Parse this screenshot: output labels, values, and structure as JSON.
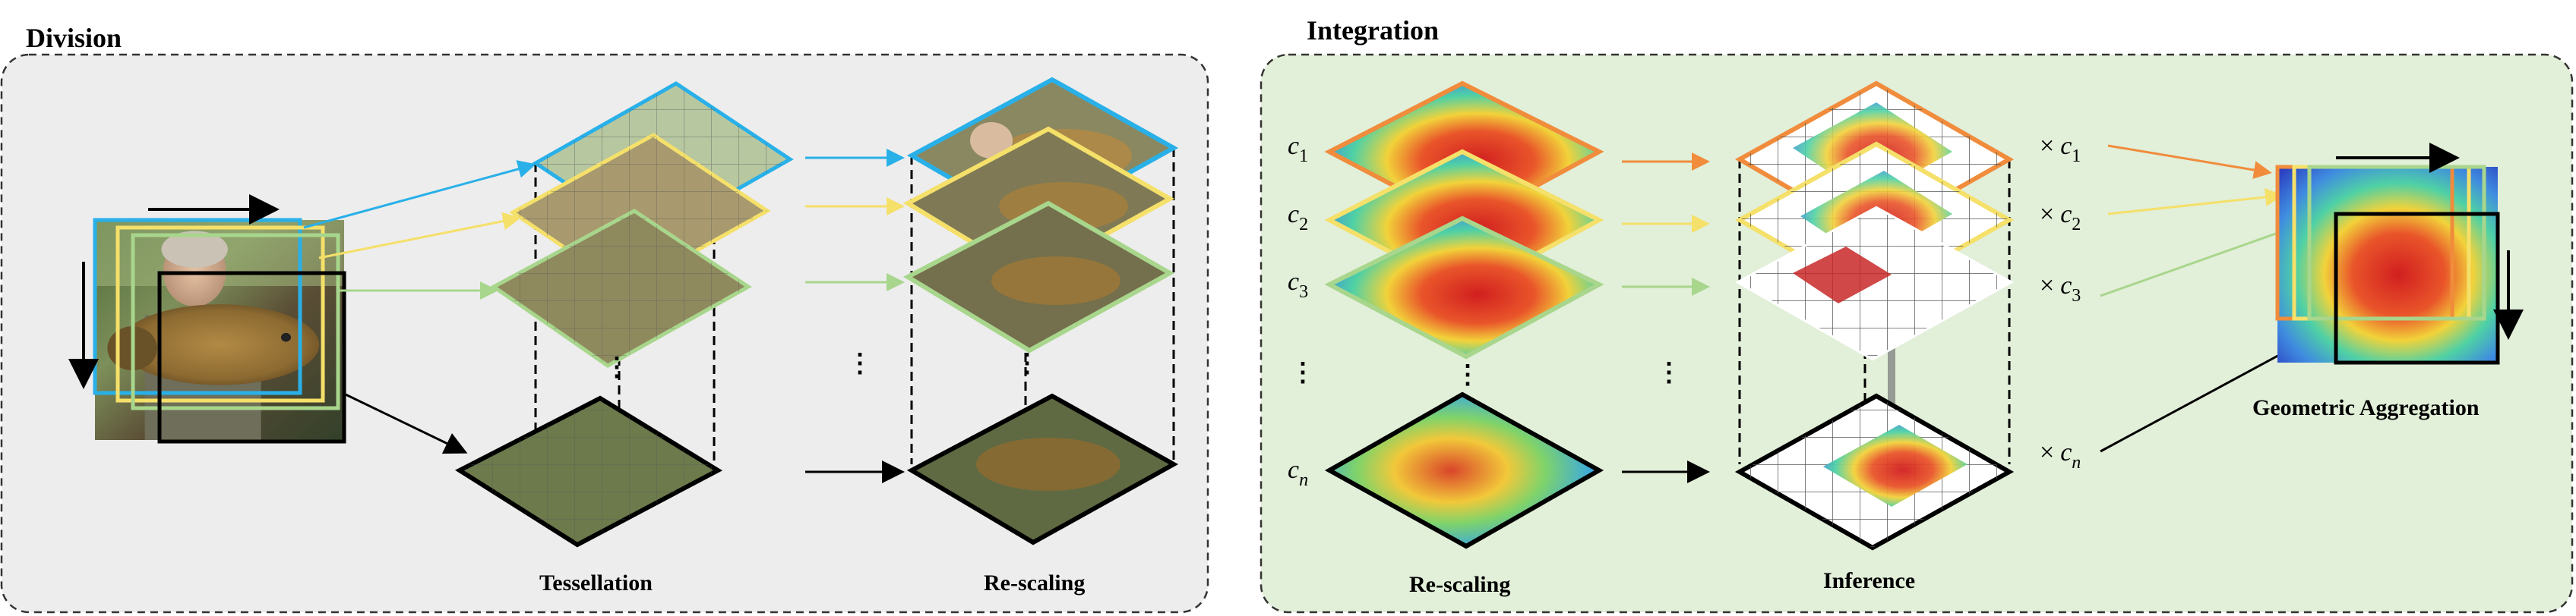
{
  "division": {
    "title": "Division",
    "tessellation_label": "Tessellation",
    "rescaling_label": "Re-scaling",
    "dots": "⋮"
  },
  "integration": {
    "title": "Integration",
    "rescaling_label": "Re-scaling",
    "inference_label": "Inference",
    "aggregation_label": "Geometric Aggregation",
    "dots": "⋮",
    "coefficients": [
      {
        "base": "c",
        "sub": "1"
      },
      {
        "base": "c",
        "sub": "2"
      },
      {
        "base": "c",
        "sub": "3"
      },
      {
        "base": "c",
        "sub": "n"
      }
    ],
    "multiply_sign": "×"
  },
  "colors": {
    "tile1": "#29b0e8",
    "tile2": "#f5e06a",
    "tile3": "#a8d68c",
    "heat_tile1": "#f08c3c",
    "panel_left_bg": "#ededed",
    "panel_right_bg": "#e2efd9",
    "arrow_black": "#000000"
  }
}
